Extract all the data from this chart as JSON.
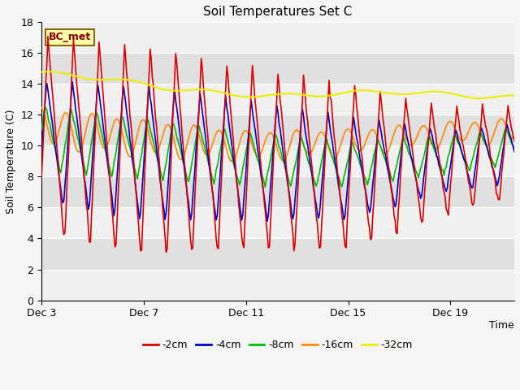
{
  "title": "Soil Temperatures Set C",
  "xlabel": "Time",
  "ylabel": "Soil Temperature (C)",
  "annotation": "BC_met",
  "ylim": [
    0,
    18
  ],
  "yticks": [
    0,
    2,
    4,
    6,
    8,
    10,
    12,
    14,
    16,
    18
  ],
  "xtick_days": [
    0,
    4,
    8,
    12,
    16
  ],
  "xtick_labels": [
    "Dec 3",
    "Dec 7",
    "Dec 11",
    "Dec 15",
    "Dec 19"
  ],
  "xlim_days": 18.5,
  "colors": {
    "-2cm": "#dd0000",
    "-4cm": "#0000cc",
    "-8cm": "#00bb00",
    "-16cm": "#ff8800",
    "-32cm": "#eeee00"
  },
  "legend_labels": [
    "-2cm",
    "-4cm",
    "-8cm",
    "-16cm",
    "-32cm"
  ],
  "linewidth": 1.2,
  "band_colors": [
    "#f0f0f0",
    "#e0e0e0"
  ]
}
